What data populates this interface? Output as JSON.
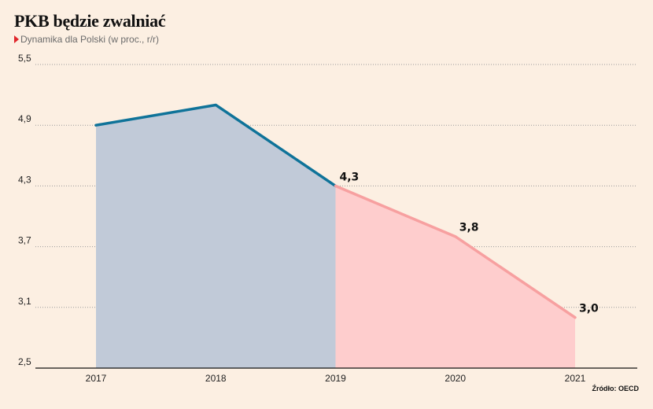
{
  "title": "PKB będzie zwalniać",
  "subtitle": "Dynamika dla Polski (w proc., r/r)",
  "source": "Źródło: OECD",
  "colors": {
    "background": "#fcefe2",
    "actual_line": "#0f7399",
    "actual_area": "#c1cad8",
    "forecast_line": "#f7a0a0",
    "forecast_area": "#fecdcd",
    "gridline": "#9a9a9a",
    "marker": "#e0262b"
  },
  "chart_data": {
    "type": "area",
    "categories": [
      "2017",
      "2018",
      "2019",
      "2020",
      "2021"
    ],
    "series": [
      {
        "segment": "actual",
        "x": [
          "2017",
          "2018",
          "2019"
        ],
        "values": [
          4.9,
          5.1,
          4.3
        ]
      },
      {
        "segment": "forecast",
        "x": [
          "2019",
          "2020",
          "2021"
        ],
        "values": [
          4.3,
          3.8,
          3.0
        ]
      }
    ],
    "data_labels": [
      {
        "x": "2019",
        "value": 4.3,
        "text": "4,3"
      },
      {
        "x": "2020",
        "value": 3.8,
        "text": "3,8"
      },
      {
        "x": "2021",
        "value": 3.0,
        "text": "3,0"
      }
    ],
    "y_ticks": [
      {
        "value": 2.5,
        "text": "2,5"
      },
      {
        "value": 3.1,
        "text": "3,1"
      },
      {
        "value": 3.7,
        "text": "3,7"
      },
      {
        "value": 4.3,
        "text": "4,3"
      },
      {
        "value": 4.9,
        "text": "4,9"
      },
      {
        "value": 5.5,
        "text": "5,5"
      }
    ],
    "ylim": [
      2.5,
      5.5
    ],
    "grid": "horizontal-dotted",
    "legend": "none"
  }
}
